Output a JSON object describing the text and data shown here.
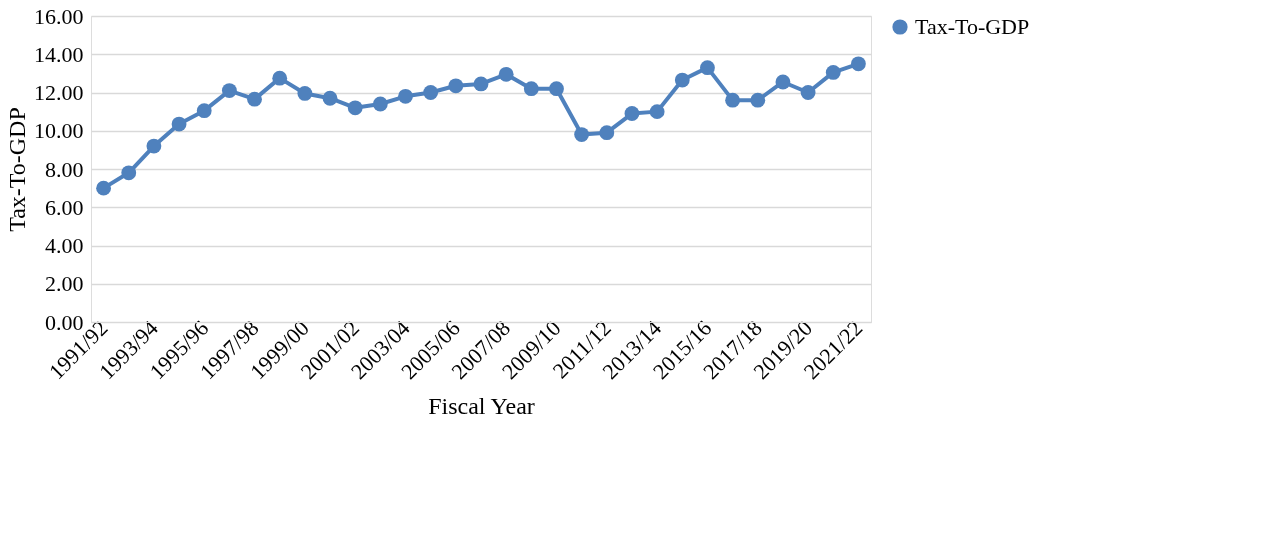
{
  "chart_data": {
    "type": "line",
    "xlabel": "Fiscal Year",
    "ylabel": "Tax-To-GDP",
    "categories": [
      "1991/92",
      null,
      "1993/94",
      null,
      "1995/96",
      null,
      "1997/98",
      null,
      "1999/00",
      null,
      "2001/02",
      null,
      "2003/04",
      null,
      "2005/06",
      null,
      "2007/08",
      null,
      "2009/10",
      null,
      "2011/12",
      null,
      "2013/14",
      null,
      "2015/16",
      null,
      "2017/18",
      null,
      "2019/20",
      null,
      "2021/22"
    ],
    "series": [
      {
        "name": "Tax-To-GDP",
        "color": "#4f81bd",
        "values": [
          7.0,
          7.8,
          9.2,
          10.35,
          11.05,
          12.1,
          11.65,
          12.75,
          11.95,
          11.7,
          11.2,
          11.4,
          11.8,
          12.0,
          12.35,
          12.45,
          12.95,
          12.2,
          12.2,
          9.8,
          9.9,
          10.9,
          11.0,
          12.65,
          13.3,
          11.6,
          11.6,
          12.55,
          12.0,
          13.05,
          13.5
        ]
      }
    ],
    "ylim": [
      0,
      16
    ],
    "yticks": [
      {
        "value": 0,
        "label": "0.00"
      },
      {
        "value": 2,
        "label": "2.00"
      },
      {
        "value": 4,
        "label": "4.00"
      },
      {
        "value": 6,
        "label": "6.00"
      },
      {
        "value": 8,
        "label": "8.00"
      },
      {
        "value": 10,
        "label": "10.00"
      },
      {
        "value": 12,
        "label": "12.00"
      },
      {
        "value": 14,
        "label": "14.00"
      },
      {
        "value": 16,
        "label": "16.00"
      }
    ],
    "grid": "y",
    "legend": "right",
    "marker": "circle",
    "line_style": "solid"
  }
}
